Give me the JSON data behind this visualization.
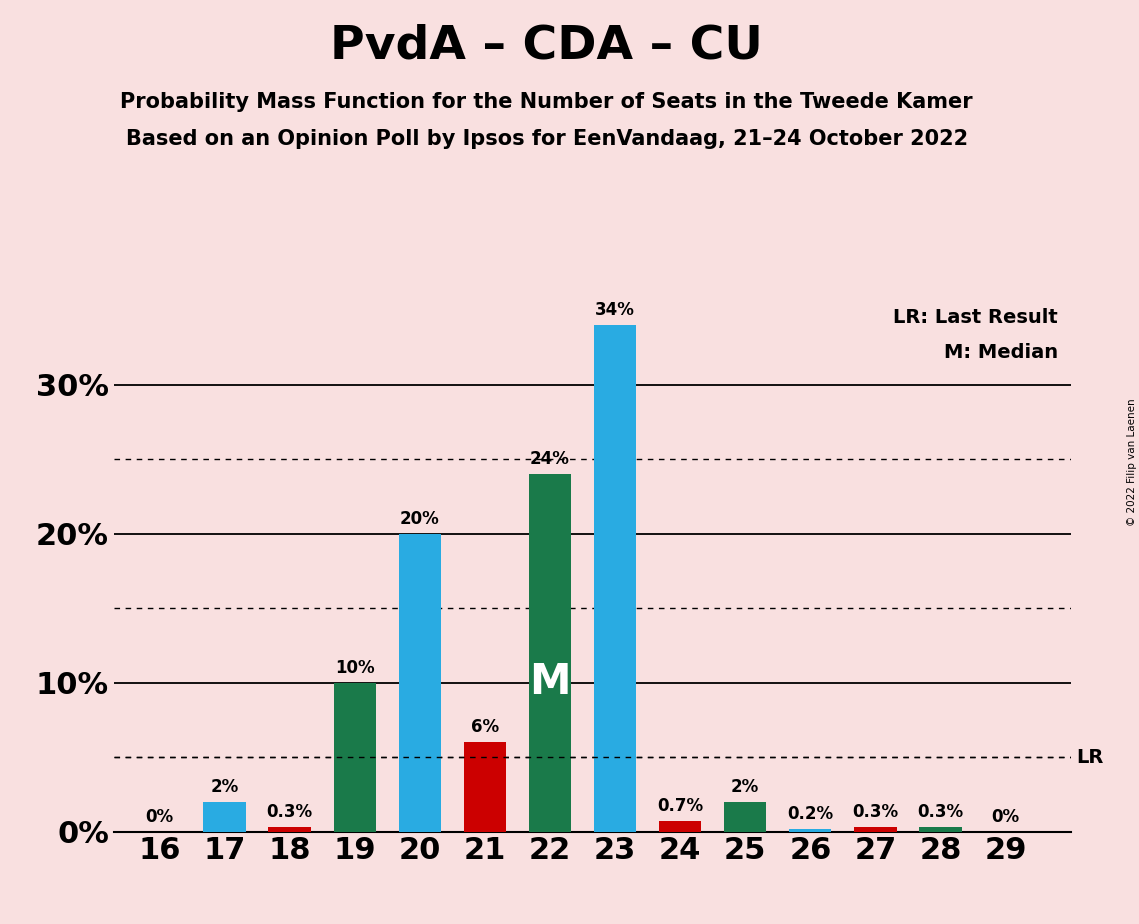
{
  "title": "PvdA – CDA – CU",
  "subtitle1": "Probability Mass Function for the Number of Seats in the Tweede Kamer",
  "subtitle2": "Based on an Opinion Poll by Ipsos for EenVandaag, 21–24 October 2022",
  "copyright": "© 2022 Filip van Laenen",
  "seats": [
    16,
    17,
    18,
    19,
    20,
    21,
    22,
    23,
    24,
    25,
    26,
    27,
    28,
    29
  ],
  "values": [
    0.0,
    2.0,
    0.3,
    10.0,
    20.0,
    6.0,
    24.0,
    34.0,
    0.7,
    2.0,
    0.2,
    0.3,
    0.3,
    0.0
  ],
  "labels": [
    "0%",
    "2%",
    "0.3%",
    "10%",
    "20%",
    "6%",
    "24%",
    "34%",
    "0.7%",
    "2%",
    "0.2%",
    "0.3%",
    "0.3%",
    "0%"
  ],
  "bar_colors": [
    "#29ABE2",
    "#29ABE2",
    "#CC0000",
    "#1A7A4A",
    "#29ABE2",
    "#CC0000",
    "#1A7A4A",
    "#29ABE2",
    "#CC0000",
    "#1A7A4A",
    "#29ABE2",
    "#CC0000",
    "#1A7A4A",
    "#29ABE2"
  ],
  "background_color": "#F9E0E0",
  "lr_value": 5.0,
  "median_seat": 22,
  "ylim": [
    0,
    36
  ],
  "ylabel_ticks": [
    0,
    10,
    20,
    30
  ],
  "solid_gridlines": [
    10,
    20,
    30
  ],
  "dotted_gridlines": [
    5,
    15,
    25
  ],
  "legend_lr": "LR: Last Result",
  "legend_m": "M: Median"
}
